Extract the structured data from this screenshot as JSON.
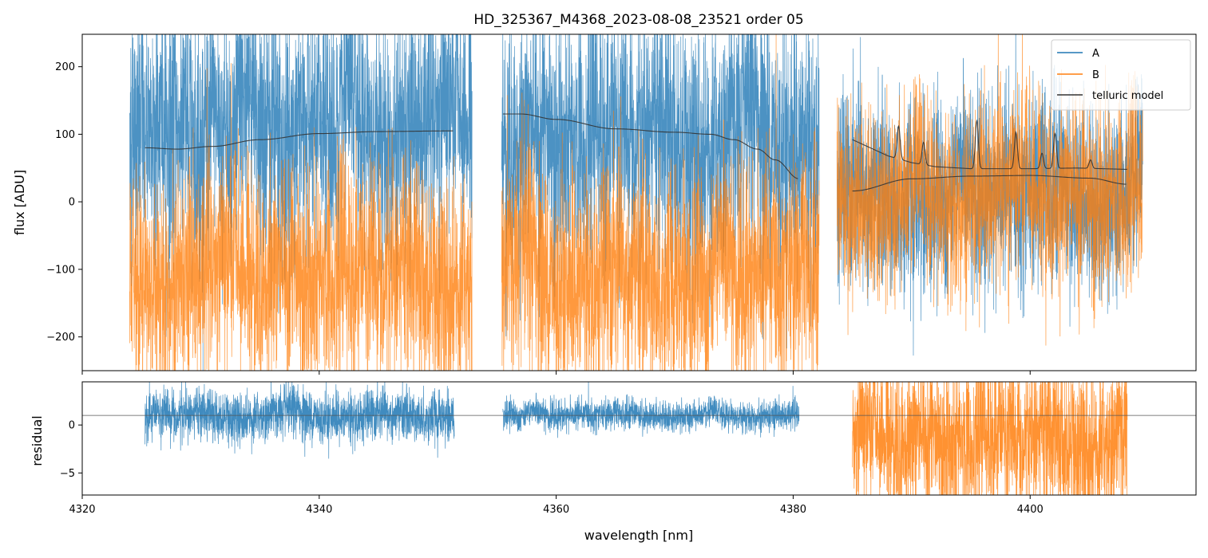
{
  "chart_data": [
    {
      "panel": "main",
      "type": "line",
      "title": "HD_325367_M4368_2023-08-08_23521  order 05",
      "xlabel": "",
      "ylabel": "flux [ADU]",
      "xlim": [
        4320,
        4414
      ],
      "ylim": [
        -250,
        248
      ],
      "yticks": [
        -200,
        -100,
        0,
        100,
        200
      ],
      "yticklabels": [
        "−200",
        "−100",
        "0",
        "100",
        "200"
      ],
      "grid": false,
      "legend": {
        "placement": "top-right",
        "entries": [
          {
            "label": "A",
            "color": "#1f77b4"
          },
          {
            "label": "B",
            "color": "#ff7f0e"
          },
          {
            "label": "telluric model",
            "color": "#333333"
          }
        ]
      },
      "series": [
        {
          "name": "A",
          "color": "#1f77b4",
          "segments": [
            {
              "x_range": [
                4324.0,
                4352.9
              ],
              "center": 110,
              "spread": 90
            },
            {
              "x_range": [
                4355.4,
                4382.2
              ],
              "center": 95,
              "spread": 90
            },
            {
              "x_range": [
                4383.7,
                4409.5
              ],
              "center": 10,
              "spread": 70
            }
          ]
        },
        {
          "name": "B",
          "color": "#ff7f0e",
          "segments": [
            {
              "x_range": [
                4324.0,
                4352.9
              ],
              "center": -110,
              "spread": 80
            },
            {
              "x_range": [
                4355.4,
                4382.2
              ],
              "center": -110,
              "spread": 80
            },
            {
              "x_range": [
                4383.7,
                4409.5
              ],
              "center": 10,
              "spread": 70
            }
          ]
        },
        {
          "name": "telluric model",
          "color": "#333333",
          "curves": [
            {
              "x": [
                4325.3,
                4328,
                4331,
                4335,
                4340,
                4345,
                4351.4
              ],
              "y": [
                80,
                78,
                82,
                92,
                101,
                104,
                105
              ]
            },
            {
              "x": [
                4355.5,
                4357,
                4360,
                4365,
                4370,
                4373,
                4375,
                4377,
                4378.5,
                4380.5
              ],
              "y": [
                130,
                130,
                122,
                108,
                103,
                100,
                92,
                78,
                62,
                34
              ]
            },
            {
              "x": [
                4385.0,
                4390,
                4395,
                4400,
                4405,
                4408.2
              ],
              "y": [
                16,
                34,
                38,
                39,
                35,
                26
              ]
            }
          ],
          "emission": {
            "x_range": [
              4385.0,
              4408.2
            ],
            "baseline": [
              [
                4385.0,
                92
              ],
              [
                4386.5,
                80
              ],
              [
                4388,
                68
              ],
              [
                4390,
                58
              ],
              [
                4392,
                52
              ],
              [
                4395,
                49
              ],
              [
                4400,
                49
              ],
              [
                4404,
                50
              ],
              [
                4408.2,
                48
              ]
            ],
            "peaks": [
              {
                "x": 4388.9,
                "height": 112
              },
              {
                "x": 4391.0,
                "height": 88
              },
              {
                "x": 4395.5,
                "height": 120
              },
              {
                "x": 4398.8,
                "height": 103
              },
              {
                "x": 4401.0,
                "height": 72
              },
              {
                "x": 4402.1,
                "height": 101
              },
              {
                "x": 4405.1,
                "height": 62
              }
            ]
          }
        }
      ]
    },
    {
      "panel": "residual",
      "type": "line",
      "xlabel": "wavelength [nm]",
      "ylabel": "residual",
      "xlim": [
        4320,
        4414
      ],
      "ylim": [
        -7.3,
        4.5
      ],
      "xticks": [
        4320,
        4340,
        4360,
        4380,
        4400
      ],
      "xticklabels": [
        "4320",
        "4340",
        "4360",
        "4380",
        "4400"
      ],
      "yticks": [
        -5,
        0
      ],
      "yticklabels": [
        "−5",
        "0"
      ],
      "reference_line": 1.0,
      "series": [
        {
          "name": "A",
          "color": "#1f77b4",
          "segments": [
            {
              "x_range": [
                4325.3,
                4351.4
              ],
              "center": 1.0,
              "spread": 1.3
            },
            {
              "x_range": [
                4355.5,
                4380.5
              ],
              "center": 1.0,
              "spread": 0.8
            }
          ]
        },
        {
          "name": "B",
          "color": "#ff7f0e",
          "segments": [
            {
              "x_range": [
                4385.0,
                4408.2
              ],
              "center": -1.5,
              "spread": 4.0
            }
          ]
        }
      ]
    }
  ]
}
